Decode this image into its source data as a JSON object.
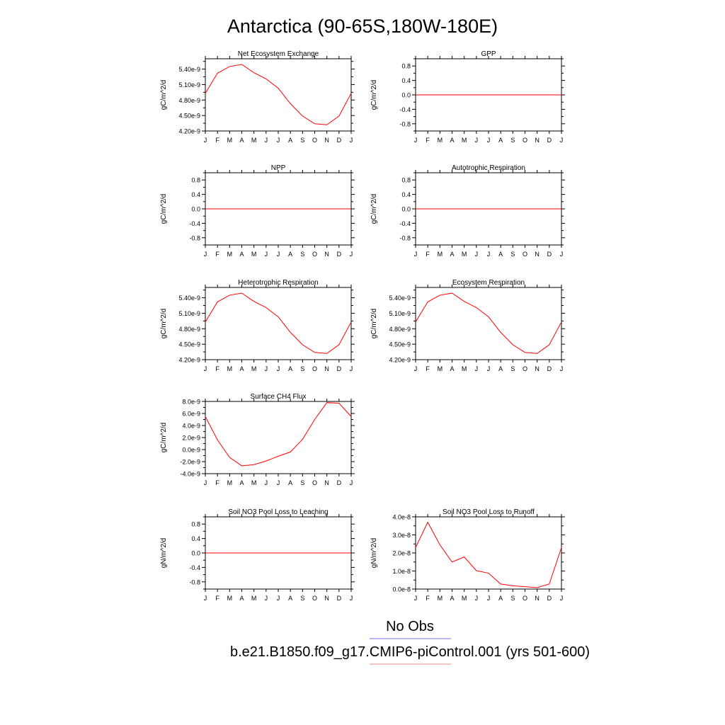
{
  "figure": {
    "title": "Antarctica (90-65S,180W-180E)",
    "months": [
      "J",
      "F",
      "M",
      "A",
      "M",
      "J",
      "J",
      "A",
      "S",
      "O",
      "N",
      "D",
      "J"
    ]
  },
  "legend": {
    "obs_label": "No Obs",
    "obs_color": "#6f6fe8",
    "model_label": "b.e21.B1850.f09_g17.CMIP6-piControl.001 (yrs 501-600)",
    "model_color": "#f08a8a"
  },
  "colors": {
    "line": "#ff0000",
    "axis": "#000000"
  },
  "chart_data": [
    {
      "type": "line",
      "title": "Net Ecosystem Exchange",
      "ylabel": "gC/m^2/d",
      "ylim": [
        4.2e-09,
        5.6e-09
      ],
      "yticks": [
        4.2e-09,
        4.5e-09,
        4.8e-09,
        5.1e-09,
        5.4e-09
      ],
      "ytick_labels": [
        "4.20e-9",
        "4.50e-9",
        "4.80e-9",
        "5.10e-9",
        "5.40e-9"
      ],
      "series": [
        {
          "values": [
            4.93e-09,
            5.32e-09,
            5.45e-09,
            5.49e-09,
            5.33e-09,
            5.21e-09,
            5.03e-09,
            4.73e-09,
            4.49e-09,
            4.34e-09,
            4.32e-09,
            4.49e-09,
            4.93e-09
          ]
        }
      ]
    },
    {
      "type": "line",
      "title": "GPP",
      "ylabel": "gC/m^2/d",
      "ylim": [
        -1.0,
        1.0
      ],
      "yticks": [
        -0.8,
        -0.4,
        0.0,
        0.4,
        0.8
      ],
      "ytick_labels": [
        "-0.8",
        "-0.4",
        "0.0",
        "0.4",
        "0.8"
      ],
      "series": [
        {
          "values": [
            0,
            0,
            0,
            0,
            0,
            0,
            0,
            0,
            0,
            0,
            0,
            0,
            0
          ]
        }
      ]
    },
    {
      "type": "line",
      "title": "NPP",
      "ylabel": "gC/m^2/d",
      "ylim": [
        -1.0,
        1.0
      ],
      "yticks": [
        -0.8,
        -0.4,
        0.0,
        0.4,
        0.8
      ],
      "ytick_labels": [
        "-0.8",
        "-0.4",
        "0.0",
        "0.4",
        "0.8"
      ],
      "series": [
        {
          "values": [
            0,
            0,
            0,
            0,
            0,
            0,
            0,
            0,
            0,
            0,
            0,
            0,
            0
          ]
        }
      ]
    },
    {
      "type": "line",
      "title": "Autotrophic Respiration",
      "ylabel": "gC/m^2/d",
      "ylim": [
        -1.0,
        1.0
      ],
      "yticks": [
        -0.8,
        -0.4,
        0.0,
        0.4,
        0.8
      ],
      "ytick_labels": [
        "-0.8",
        "-0.4",
        "0.0",
        "0.4",
        "0.8"
      ],
      "series": [
        {
          "values": [
            0,
            0,
            0,
            0,
            0,
            0,
            0,
            0,
            0,
            0,
            0,
            0,
            0
          ]
        }
      ]
    },
    {
      "type": "line",
      "title": "Heterotrophic Respiration",
      "ylabel": "gC/m^2/d",
      "ylim": [
        4.2e-09,
        5.6e-09
      ],
      "yticks": [
        4.2e-09,
        4.5e-09,
        4.8e-09,
        5.1e-09,
        5.4e-09
      ],
      "ytick_labels": [
        "4.20e-9",
        "4.50e-9",
        "4.80e-9",
        "5.10e-9",
        "5.40e-9"
      ],
      "series": [
        {
          "values": [
            4.93e-09,
            5.32e-09,
            5.45e-09,
            5.49e-09,
            5.33e-09,
            5.21e-09,
            5.03e-09,
            4.73e-09,
            4.49e-09,
            4.34e-09,
            4.32e-09,
            4.49e-09,
            4.93e-09
          ]
        }
      ]
    },
    {
      "type": "line",
      "title": "Ecosystem Respiration",
      "ylabel": "gC/m^2/d",
      "ylim": [
        4.2e-09,
        5.6e-09
      ],
      "yticks": [
        4.2e-09,
        4.5e-09,
        4.8e-09,
        5.1e-09,
        5.4e-09
      ],
      "ytick_labels": [
        "4.20e-9",
        "4.50e-9",
        "4.80e-9",
        "5.10e-9",
        "5.40e-9"
      ],
      "series": [
        {
          "values": [
            4.93e-09,
            5.32e-09,
            5.45e-09,
            5.49e-09,
            5.33e-09,
            5.21e-09,
            5.03e-09,
            4.73e-09,
            4.49e-09,
            4.34e-09,
            4.32e-09,
            4.49e-09,
            4.93e-09
          ]
        }
      ]
    },
    {
      "type": "line",
      "title": "Surface CH4 Flux",
      "ylabel": "gC/m^2/d",
      "ylim": [
        -4e-09,
        8e-09
      ],
      "yticks": [
        -4e-09,
        -2e-09,
        0.0,
        2e-09,
        4e-09,
        6e-09,
        8e-09
      ],
      "ytick_labels": [
        "-4.0e-9",
        "-2.0e-9",
        "0.0e-9",
        "2.0e-9",
        "4.0e-9",
        "6.0e-9",
        "8.0e-9"
      ],
      "series": [
        {
          "values": [
            5.5e-09,
            1.6e-09,
            -1.3e-09,
            -2.7e-09,
            -2.5e-09,
            -1.9e-09,
            -1.1e-09,
            -4e-10,
            1.7e-09,
            5e-09,
            7.8e-09,
            7.7e-09,
            5.5e-09
          ]
        }
      ]
    },
    {
      "type": "line",
      "title": "Soil NO3 Pool Loss to Leaching",
      "ylabel": "gN/m^2/d",
      "ylim": [
        -1.0,
        1.0
      ],
      "yticks": [
        -0.8,
        -0.4,
        0.0,
        0.4,
        0.8
      ],
      "ytick_labels": [
        "-0.8",
        "-0.4",
        "0.0",
        "0.4",
        "0.8"
      ],
      "series": [
        {
          "values": [
            0,
            0,
            0,
            0,
            0,
            0,
            0,
            0,
            0,
            0,
            0,
            0,
            0
          ]
        }
      ]
    },
    {
      "type": "line",
      "title": "Soil NO3 Pool Loss to Runoff",
      "ylabel": "gN/m^2/d",
      "ylim": [
        0.0,
        4e-08
      ],
      "yticks": [
        0.0,
        1e-08,
        2e-08,
        3e-08,
        4e-08
      ],
      "ytick_labels": [
        "0.0e-8",
        "1.0e-8",
        "2.0e-8",
        "3.0e-8",
        "4.0e-8"
      ],
      "series": [
        {
          "values": [
            2.3e-08,
            3.7e-08,
            2.45e-08,
            1.5e-08,
            1.78e-08,
            1.02e-08,
            8.8e-09,
            2.8e-09,
            1.8e-09,
            1.3e-09,
            8e-10,
            2.8e-09,
            2.3e-08
          ]
        }
      ]
    }
  ]
}
